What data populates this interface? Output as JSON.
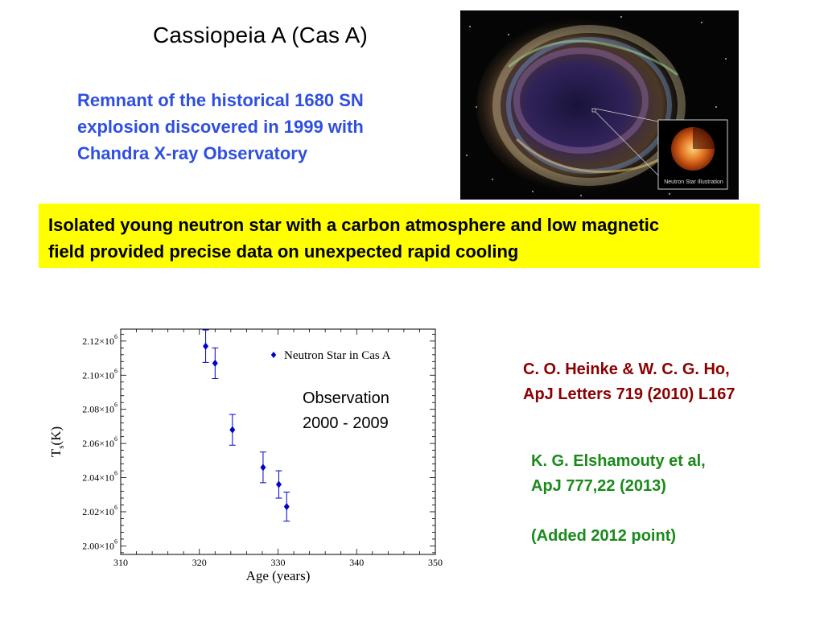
{
  "title": "Cassiopeia A (Cas A)",
  "description_lines": [
    "Remnant of the  historical 1680 SN",
    "explosion discovered in 1999 with",
    "Chandra X-ray Observatory"
  ],
  "inset_label": "Neutron Star Illustration",
  "highlight_lines": [
    "Isolated young neutron star with a carbon atmosphere and low magnetic",
    "field  provided precise data on unexpected rapid cooling"
  ],
  "observation_note": [
    "Observation",
    "2000 - 2009"
  ],
  "reference1": [
    "C. O. Heinke & W. C. G. Ho,",
    "ApJ Letters 719 (2010) L167"
  ],
  "reference2": [
    "K. G. Elshamouty et al,",
    "ApJ 777,22 (2013)",
    "(Added 2012 point)"
  ],
  "chart_data": {
    "type": "scatter",
    "xlabel": "Age (years)",
    "ylabel": "T_s(K)",
    "xlim": [
      310,
      350
    ],
    "ylim": [
      1995000,
      2127000
    ],
    "x_ticks": [
      "310",
      "320",
      "330",
      "340",
      "350"
    ],
    "x_tick_values": [
      310,
      320,
      330,
      340,
      350
    ],
    "y_ticks": [
      {
        "mantissa": "2.00",
        "value": 2000000
      },
      {
        "mantissa": "2.02",
        "value": 2020000
      },
      {
        "mantissa": "2.04",
        "value": 2040000
      },
      {
        "mantissa": "2.06",
        "value": 2060000
      },
      {
        "mantissa": "2.08",
        "value": 2080000
      },
      {
        "mantissa": "2.10",
        "value": 2100000
      },
      {
        "mantissa": "2.12",
        "value": 2120000
      }
    ],
    "y_tick_suffix": "×10",
    "y_tick_exponent": "6",
    "series": [
      {
        "name": "Neutron Star in Cas A",
        "color": "#0000cc",
        "marker": "diamond",
        "points": [
          {
            "x": 320.8,
            "y": 2117000,
            "err": 9500
          },
          {
            "x": 322.0,
            "y": 2107000,
            "err": 9000
          },
          {
            "x": 324.2,
            "y": 2068000,
            "err": 9000
          },
          {
            "x": 328.1,
            "y": 2046000,
            "err": 9000
          },
          {
            "x": 330.1,
            "y": 2036000,
            "err": 8000
          },
          {
            "x": 331.1,
            "y": 2023000,
            "err": 8500
          }
        ]
      }
    ],
    "legend_position": "top-right",
    "grid": false
  }
}
